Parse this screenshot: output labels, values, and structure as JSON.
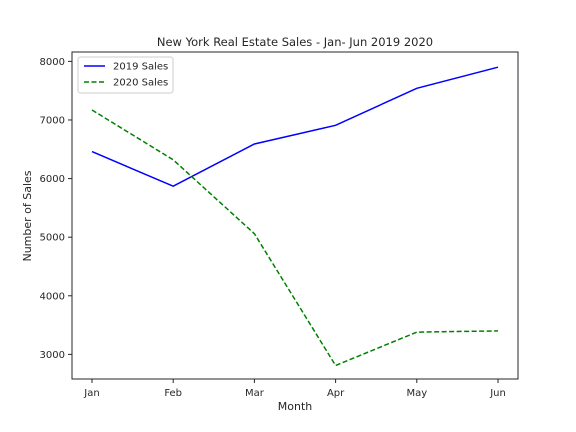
{
  "chart_data": {
    "type": "line",
    "title": "New York Real Estate Sales - Jan- Jun 2019 2020",
    "xlabel": "Month",
    "ylabel": "Number of Sales",
    "categories": [
      "Jan",
      "Feb",
      "Mar",
      "Apr",
      "May",
      "Jun"
    ],
    "series": [
      {
        "name": "2019 Sales",
        "values": [
          6460,
          5870,
          6590,
          6910,
          7540,
          7900
        ],
        "color": "#0000ff",
        "style": "solid"
      },
      {
        "name": "2020 Sales",
        "values": [
          7170,
          6320,
          5060,
          2810,
          3380,
          3400
        ],
        "color": "#008000",
        "style": "dashed"
      }
    ],
    "yticks": [
      3000,
      4000,
      5000,
      6000,
      7000,
      8000
    ],
    "ylim": [
      2580,
      8160
    ],
    "grid": false,
    "legend": "upper-left"
  }
}
